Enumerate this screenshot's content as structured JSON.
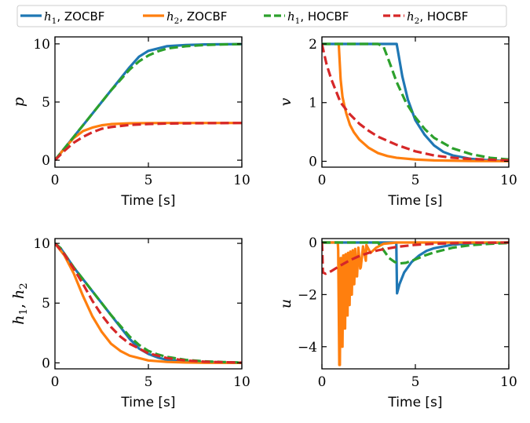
{
  "colors": {
    "blue": "#1f77b4",
    "orange": "#ff7f0e",
    "green": "#2ca02c",
    "red": "#d62728"
  },
  "legend": {
    "placement": "top-center",
    "entries": [
      {
        "label": "h1, ZOCBF",
        "color": "#1f77b4",
        "style": "solid"
      },
      {
        "label": "h2, ZOCBF",
        "color": "#ff7f0e",
        "style": "solid"
      },
      {
        "label": "h1, HOCBF",
        "color": "#2ca02c",
        "style": "dashed"
      },
      {
        "label": "h2, HOCBF",
        "color": "#d62728",
        "style": "dashed"
      }
    ]
  },
  "chart_data": [
    {
      "type": "line",
      "ylabel": "p",
      "xlabel": "Time [s]",
      "xlim": [
        0,
        10
      ],
      "ylim": [
        -0.6,
        10.6
      ],
      "xticks": [
        0,
        5,
        10
      ],
      "yticks": [
        0,
        5,
        10
      ],
      "series": [
        {
          "name": "h1, ZOCBF",
          "color": "#1f77b4",
          "dash": false,
          "x": [
            0,
            1,
            2,
            3,
            4,
            4.5,
            5,
            6,
            7,
            8,
            9,
            10
          ],
          "y": [
            0,
            2.0,
            4.0,
            6.0,
            8.0,
            8.9,
            9.4,
            9.8,
            9.9,
            9.95,
            9.97,
            9.98
          ]
        },
        {
          "name": "h2, ZOCBF",
          "color": "#ff7f0e",
          "dash": false,
          "x": [
            0,
            0.5,
            1,
            1.5,
            2,
            2.5,
            3,
            4,
            5,
            6,
            8,
            10
          ],
          "y": [
            0,
            1.0,
            1.9,
            2.5,
            2.8,
            3.0,
            3.1,
            3.17,
            3.19,
            3.2,
            3.2,
            3.2
          ]
        },
        {
          "name": "h1, HOCBF",
          "color": "#2ca02c",
          "dash": true,
          "x": [
            0,
            1,
            2,
            3,
            4,
            4.5,
            5,
            5.5,
            6,
            7,
            8,
            9,
            10
          ],
          "y": [
            0,
            2.0,
            4.0,
            6.0,
            7.8,
            8.5,
            9.0,
            9.35,
            9.6,
            9.8,
            9.9,
            9.95,
            9.98
          ]
        },
        {
          "name": "h2, HOCBF",
          "color": "#d62728",
          "dash": true,
          "x": [
            0,
            0.5,
            1,
            1.5,
            2,
            2.5,
            3,
            4,
            5,
            6,
            8,
            10
          ],
          "y": [
            0,
            0.8,
            1.5,
            2.0,
            2.4,
            2.7,
            2.85,
            3.03,
            3.11,
            3.15,
            3.18,
            3.2
          ]
        }
      ]
    },
    {
      "type": "line",
      "ylabel": "v",
      "xlabel": "Time [s]",
      "xlim": [
        0,
        10
      ],
      "ylim": [
        -0.1,
        2.12
      ],
      "xticks": [
        0,
        5,
        10
      ],
      "yticks": [
        0,
        1,
        2
      ],
      "series": [
        {
          "name": "h1, ZOCBF",
          "color": "#1f77b4",
          "dash": false,
          "x": [
            0,
            4.0,
            4.3,
            4.6,
            5.0,
            5.5,
            6,
            6.5,
            7,
            8,
            9,
            10
          ],
          "y": [
            2.0,
            2.0,
            1.45,
            1.05,
            0.7,
            0.45,
            0.27,
            0.16,
            0.1,
            0.04,
            0.015,
            0.005
          ]
        },
        {
          "name": "h2, ZOCBF",
          "color": "#ff7f0e",
          "dash": false,
          "x": [
            0.8,
            0.9,
            1.0,
            1.1,
            1.2,
            1.3,
            1.4,
            1.5,
            1.7,
            2.0,
            2.5,
            3.0,
            3.5,
            4.0,
            5,
            6,
            8,
            10
          ],
          "y": [
            2.0,
            2.0,
            1.4,
            1.1,
            0.95,
            0.82,
            0.72,
            0.62,
            0.5,
            0.37,
            0.23,
            0.14,
            0.09,
            0.06,
            0.03,
            0.015,
            0.005,
            0.002
          ]
        },
        {
          "name": "h1, HOCBF",
          "color": "#2ca02c",
          "dash": true,
          "x": [
            0,
            3.0,
            3.3,
            3.6,
            4.0,
            4.5,
            5,
            5.5,
            6,
            7,
            8,
            9,
            10
          ],
          "y": [
            2.0,
            2.0,
            1.95,
            1.7,
            1.35,
            1.0,
            0.75,
            0.55,
            0.4,
            0.22,
            0.12,
            0.06,
            0.03
          ]
        },
        {
          "name": "h2, HOCBF",
          "color": "#d62728",
          "dash": true,
          "x": [
            0,
            0.25,
            0.5,
            1.0,
            1.5,
            2.0,
            2.5,
            3.0,
            4.0,
            5.0,
            6,
            7,
            8,
            10
          ],
          "y": [
            2.0,
            1.65,
            1.4,
            1.0,
            0.8,
            0.64,
            0.52,
            0.42,
            0.28,
            0.17,
            0.1,
            0.06,
            0.04,
            0.015
          ]
        }
      ]
    },
    {
      "type": "line",
      "ylabel": "h1, h2",
      "xlabel": "Time [s]",
      "xlim": [
        0,
        10
      ],
      "ylim": [
        -0.5,
        10.4
      ],
      "xticks": [
        0,
        5,
        10
      ],
      "yticks": [
        0,
        5,
        10
      ],
      "series": [
        {
          "name": "h1, ZOCBF",
          "color": "#1f77b4",
          "dash": false,
          "x": [
            0,
            0.3,
            1,
            2,
            3,
            4,
            4.5,
            5,
            5.5,
            6,
            7,
            8,
            9,
            10
          ],
          "y": [
            10,
            9.6,
            8.0,
            6.0,
            4.0,
            2.0,
            1.2,
            0.75,
            0.45,
            0.25,
            0.1,
            0.05,
            0.03,
            0.02
          ]
        },
        {
          "name": "h2, ZOCBF",
          "color": "#ff7f0e",
          "dash": false,
          "x": [
            0,
            0.5,
            1,
            1.5,
            2,
            2.5,
            3,
            3.5,
            4,
            5,
            6,
            7,
            8,
            10
          ],
          "y": [
            10,
            9.0,
            7.5,
            5.6,
            3.9,
            2.6,
            1.6,
            1.0,
            0.6,
            0.2,
            0.08,
            0.03,
            0.01,
            0.0
          ]
        },
        {
          "name": "h1, HOCBF",
          "color": "#2ca02c",
          "dash": true,
          "x": [
            0,
            0.3,
            1,
            2,
            3,
            4,
            4.5,
            5,
            5.5,
            6,
            7,
            8,
            9,
            10
          ],
          "y": [
            10,
            9.6,
            8.0,
            6.0,
            4.0,
            2.2,
            1.5,
            1.0,
            0.7,
            0.5,
            0.25,
            0.13,
            0.07,
            0.03
          ]
        },
        {
          "name": "h2, HOCBF",
          "color": "#d62728",
          "dash": true,
          "x": [
            0,
            0.5,
            1,
            1.5,
            2,
            2.5,
            3,
            3.5,
            4,
            5,
            6,
            7,
            8,
            10
          ],
          "y": [
            10,
            9.1,
            7.9,
            6.6,
            5.2,
            4.0,
            3.0,
            2.2,
            1.6,
            0.8,
            0.4,
            0.2,
            0.1,
            0.02
          ]
        }
      ]
    },
    {
      "type": "line",
      "ylabel": "u",
      "xlabel": "Time [s]",
      "xlim": [
        0,
        10
      ],
      "ylim": [
        -4.85,
        0.15
      ],
      "xticks": [
        0,
        5,
        10
      ],
      "yticks": [
        0,
        -2,
        -4
      ],
      "series": [
        {
          "name": "h1, ZOCBF",
          "color": "#1f77b4",
          "dash": false,
          "x": [
            0,
            3.98,
            4.0,
            4.02,
            4.15,
            4.4,
            4.8,
            5.2,
            5.6,
            6,
            7,
            8,
            10
          ],
          "y": [
            0,
            0,
            -1.0,
            -1.95,
            -1.6,
            -1.15,
            -0.75,
            -0.5,
            -0.32,
            -0.22,
            -0.08,
            -0.03,
            0
          ]
        },
        {
          "name": "h2, ZOCBF",
          "color": "#ff7f0e",
          "dash": false,
          "x": [
            0,
            0.85,
            0.87,
            0.93,
            0.96,
            1.0,
            1.04,
            1.07,
            1.1,
            1.14,
            1.17,
            1.2,
            1.24,
            1.27,
            1.3,
            1.34,
            1.37,
            1.4,
            1.45,
            1.48,
            1.52,
            1.57,
            1.6,
            1.65,
            1.7,
            1.73,
            1.78,
            1.85,
            1.88,
            1.95,
            2.05,
            2.08,
            2.2,
            2.35,
            2.38,
            2.6,
            2.9,
            3.3,
            4,
            10
          ],
          "y": [
            0,
            0,
            -0.3,
            -4.7,
            -4.7,
            -0.6,
            -0.6,
            -4.0,
            -4.0,
            -0.5,
            -0.5,
            -3.3,
            -3.3,
            -0.45,
            -0.45,
            -2.8,
            -2.8,
            -0.4,
            -2.4,
            -2.4,
            -0.35,
            -2.0,
            -2.0,
            -0.3,
            -1.6,
            -1.6,
            -0.25,
            -1.3,
            -1.3,
            -0.2,
            -1.0,
            -0.95,
            -0.15,
            -0.7,
            -0.1,
            -0.4,
            -0.2,
            -0.05,
            0,
            0
          ]
        },
        {
          "name": "h1, HOCBF",
          "color": "#2ca02c",
          "dash": true,
          "x": [
            0,
            3.0,
            3.3,
            3.6,
            3.9,
            4.2,
            4.5,
            5.0,
            5.5,
            6,
            7,
            8,
            9,
            10
          ],
          "y": [
            0,
            0,
            -0.3,
            -0.6,
            -0.75,
            -0.8,
            -0.78,
            -0.65,
            -0.5,
            -0.38,
            -0.2,
            -0.1,
            -0.05,
            -0.02
          ]
        },
        {
          "name": "h2, HOCBF",
          "color": "#d62728",
          "dash": true,
          "x": [
            0,
            0.02,
            0.05,
            0.2,
            0.5,
            1.0,
            1.5,
            2.0,
            2.5,
            3.0,
            4.0,
            5.0,
            6.0,
            8.0,
            10
          ],
          "y": [
            0,
            -0.3,
            -1.15,
            -1.2,
            -1.1,
            -0.88,
            -0.68,
            -0.52,
            -0.4,
            -0.3,
            -0.17,
            -0.09,
            -0.05,
            -0.01,
            0
          ]
        }
      ]
    }
  ]
}
